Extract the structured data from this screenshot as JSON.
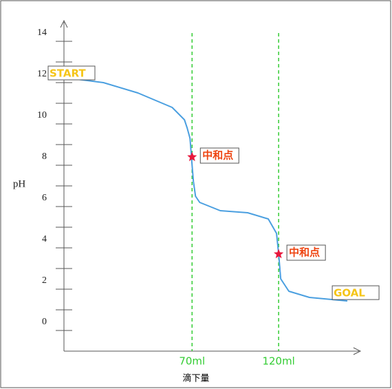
{
  "chart_data": {
    "type": "line",
    "x_label": "滴下量",
    "y_label": "pH",
    "x": [
      0,
      18.8,
      38.7,
      58.5,
      65.6,
      67.2,
      68.8,
      70,
      70.8,
      72,
      74.4,
      86.3,
      102.1,
      114,
      118.8,
      120,
      121.2,
      125.9,
      137.8,
      159.7
    ],
    "series": [
      {
        "color": "#4a9fe0",
        "values": [
          12.2,
          12.0,
          11.5,
          10.8,
          10.2,
          9.8,
          9.3,
          8.0,
          7.2,
          6.5,
          6.2,
          5.8,
          5.7,
          5.4,
          4.7,
          3.7,
          2.5,
          1.9,
          1.6,
          1.43
        ]
      }
    ],
    "xlim": [
      -4,
      168
    ],
    "ylim": [
      -1,
      15
    ],
    "xticks": [
      {
        "value": 70,
        "label": "70ml"
      },
      {
        "value": 120,
        "label": "120ml"
      }
    ],
    "yticks": [
      0,
      2,
      4,
      6,
      8,
      10,
      12,
      14
    ],
    "yminorticks": [
      1,
      3,
      5,
      7,
      9,
      11,
      13
    ],
    "vlines_color": "#33cc33",
    "start_label": "START",
    "goal_label": "GOAL",
    "annotations": [
      {
        "text": "中和点",
        "x": 70,
        "y": 8.4
      },
      {
        "text": "中和点",
        "x": 120,
        "y": 3.7
      }
    ]
  }
}
